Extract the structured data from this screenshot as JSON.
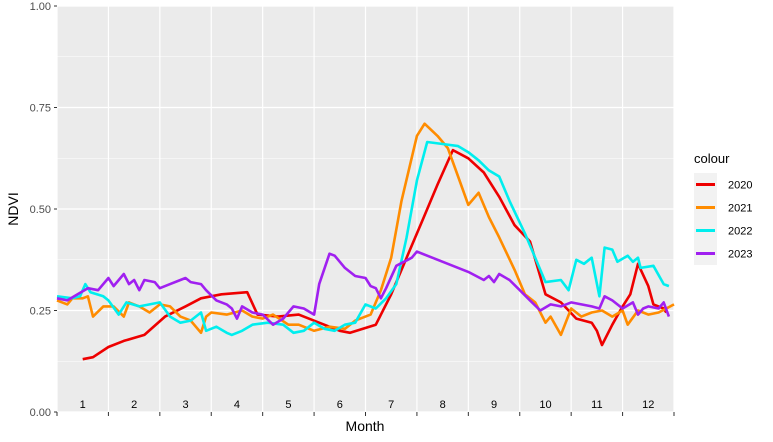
{
  "chart_data": {
    "type": "line",
    "title": "",
    "xlabel": "Month",
    "ylabel": "NDVI",
    "xlim": [
      0.5,
      12.5
    ],
    "ylim": [
      0,
      1
    ],
    "x_ticks": [
      1,
      2,
      3,
      4,
      5,
      6,
      7,
      8,
      9,
      10,
      11,
      12
    ],
    "x_tick_labels": [
      "1",
      "2",
      "3",
      "4",
      "5",
      "6",
      "7",
      "8",
      "9",
      "10",
      "11",
      "12"
    ],
    "y_ticks": [
      0,
      0.25,
      0.5,
      0.75,
      1
    ],
    "y_tick_labels": [
      "0.00",
      "0.25",
      "0.50",
      "0.75",
      "1.00"
    ],
    "grid": true,
    "legend": {
      "title": "colour",
      "position": "right"
    },
    "series": [
      {
        "name": "2020",
        "color": "#ee0000",
        "points": [
          [
            1.0,
            0.13
          ],
          [
            1.2,
            0.135
          ],
          [
            1.5,
            0.16
          ],
          [
            1.8,
            0.175
          ],
          [
            2.2,
            0.19
          ],
          [
            2.6,
            0.235
          ],
          [
            3.0,
            0.26
          ],
          [
            3.3,
            0.28
          ],
          [
            3.7,
            0.29
          ],
          [
            4.2,
            0.295
          ],
          [
            4.4,
            0.24
          ],
          [
            4.8,
            0.235
          ],
          [
            5.2,
            0.24
          ],
          [
            5.6,
            0.22
          ],
          [
            6.0,
            0.2
          ],
          [
            6.2,
            0.195
          ],
          [
            6.7,
            0.215
          ],
          [
            7.0,
            0.29
          ],
          [
            7.3,
            0.38
          ],
          [
            7.6,
            0.47
          ],
          [
            7.9,
            0.56
          ],
          [
            8.2,
            0.645
          ],
          [
            8.5,
            0.625
          ],
          [
            8.8,
            0.59
          ],
          [
            9.1,
            0.53
          ],
          [
            9.4,
            0.46
          ],
          [
            9.7,
            0.42
          ],
          [
            10.0,
            0.29
          ],
          [
            10.3,
            0.27
          ],
          [
            10.6,
            0.23
          ],
          [
            10.9,
            0.22
          ],
          [
            11.0,
            0.2
          ],
          [
            11.1,
            0.165
          ],
          [
            11.3,
            0.215
          ],
          [
            11.5,
            0.26
          ],
          [
            11.65,
            0.29
          ],
          [
            11.8,
            0.365
          ],
          [
            12.0,
            0.31
          ],
          [
            12.1,
            0.265
          ],
          [
            12.3,
            0.255
          ],
          [
            12.35,
            0.245
          ]
        ]
      },
      {
        "name": "2021",
        "color": "#ff8c00",
        "points": [
          [
            0.5,
            0.275
          ],
          [
            0.7,
            0.265
          ],
          [
            0.8,
            0.28
          ],
          [
            1.0,
            0.28
          ],
          [
            1.1,
            0.285
          ],
          [
            1.2,
            0.235
          ],
          [
            1.4,
            0.26
          ],
          [
            1.6,
            0.26
          ],
          [
            1.8,
            0.235
          ],
          [
            1.9,
            0.27
          ],
          [
            2.1,
            0.26
          ],
          [
            2.3,
            0.245
          ],
          [
            2.5,
            0.265
          ],
          [
            2.7,
            0.26
          ],
          [
            2.9,
            0.235
          ],
          [
            3.1,
            0.225
          ],
          [
            3.3,
            0.195
          ],
          [
            3.4,
            0.235
          ],
          [
            3.5,
            0.245
          ],
          [
            3.8,
            0.24
          ],
          [
            4.1,
            0.25
          ],
          [
            4.3,
            0.235
          ],
          [
            4.5,
            0.23
          ],
          [
            4.7,
            0.24
          ],
          [
            5.0,
            0.215
          ],
          [
            5.2,
            0.215
          ],
          [
            5.5,
            0.2
          ],
          [
            5.8,
            0.21
          ],
          [
            6.1,
            0.205
          ],
          [
            6.3,
            0.225
          ],
          [
            6.6,
            0.24
          ],
          [
            6.8,
            0.3
          ],
          [
            7.0,
            0.38
          ],
          [
            7.2,
            0.52
          ],
          [
            7.5,
            0.68
          ],
          [
            7.65,
            0.71
          ],
          [
            7.9,
            0.68
          ],
          [
            8.1,
            0.65
          ],
          [
            8.3,
            0.58
          ],
          [
            8.5,
            0.51
          ],
          [
            8.7,
            0.54
          ],
          [
            8.9,
            0.48
          ],
          [
            9.1,
            0.43
          ],
          [
            9.4,
            0.35
          ],
          [
            9.6,
            0.29
          ],
          [
            9.8,
            0.27
          ],
          [
            10.0,
            0.22
          ],
          [
            10.1,
            0.235
          ],
          [
            10.3,
            0.19
          ],
          [
            10.5,
            0.255
          ],
          [
            10.7,
            0.235
          ],
          [
            10.9,
            0.245
          ],
          [
            11.1,
            0.25
          ],
          [
            11.3,
            0.235
          ],
          [
            11.5,
            0.25
          ],
          [
            11.6,
            0.215
          ],
          [
            11.8,
            0.25
          ],
          [
            12.0,
            0.24
          ],
          [
            12.2,
            0.245
          ],
          [
            12.35,
            0.255
          ],
          [
            12.5,
            0.265
          ]
        ]
      },
      {
        "name": "2022",
        "color": "#00eeee",
        "points": [
          [
            0.5,
            0.285
          ],
          [
            0.8,
            0.28
          ],
          [
            0.95,
            0.285
          ],
          [
            1.05,
            0.315
          ],
          [
            1.15,
            0.295
          ],
          [
            1.4,
            0.285
          ],
          [
            1.5,
            0.275
          ],
          [
            1.7,
            0.24
          ],
          [
            1.85,
            0.27
          ],
          [
            2.1,
            0.26
          ],
          [
            2.3,
            0.265
          ],
          [
            2.5,
            0.27
          ],
          [
            2.7,
            0.235
          ],
          [
            2.9,
            0.22
          ],
          [
            3.1,
            0.225
          ],
          [
            3.3,
            0.245
          ],
          [
            3.4,
            0.2
          ],
          [
            3.6,
            0.21
          ],
          [
            3.8,
            0.195
          ],
          [
            3.9,
            0.19
          ],
          [
            4.1,
            0.2
          ],
          [
            4.3,
            0.215
          ],
          [
            4.6,
            0.22
          ],
          [
            4.9,
            0.215
          ],
          [
            5.1,
            0.195
          ],
          [
            5.3,
            0.2
          ],
          [
            5.5,
            0.22
          ],
          [
            5.7,
            0.205
          ],
          [
            5.9,
            0.2
          ],
          [
            6.1,
            0.215
          ],
          [
            6.3,
            0.22
          ],
          [
            6.5,
            0.265
          ],
          [
            6.7,
            0.255
          ],
          [
            6.9,
            0.28
          ],
          [
            7.1,
            0.315
          ],
          [
            7.3,
            0.43
          ],
          [
            7.5,
            0.57
          ],
          [
            7.7,
            0.665
          ],
          [
            8.0,
            0.66
          ],
          [
            8.3,
            0.655
          ],
          [
            8.5,
            0.64
          ],
          [
            8.7,
            0.62
          ],
          [
            8.9,
            0.595
          ],
          [
            9.1,
            0.58
          ],
          [
            9.3,
            0.52
          ],
          [
            9.6,
            0.44
          ],
          [
            9.8,
            0.38
          ],
          [
            10.0,
            0.32
          ],
          [
            10.3,
            0.325
          ],
          [
            10.45,
            0.3
          ],
          [
            10.6,
            0.375
          ],
          [
            10.75,
            0.365
          ],
          [
            10.9,
            0.38
          ],
          [
            11.05,
            0.285
          ],
          [
            11.15,
            0.405
          ],
          [
            11.3,
            0.4
          ],
          [
            11.4,
            0.37
          ],
          [
            11.6,
            0.385
          ],
          [
            11.7,
            0.37
          ],
          [
            11.8,
            0.38
          ],
          [
            11.85,
            0.355
          ],
          [
            12.1,
            0.36
          ],
          [
            12.3,
            0.315
          ],
          [
            12.4,
            0.31
          ]
        ]
      },
      {
        "name": "2023",
        "color": "#a020f0",
        "points": [
          [
            0.5,
            0.28
          ],
          [
            0.7,
            0.275
          ],
          [
            0.9,
            0.29
          ],
          [
            1.1,
            0.305
          ],
          [
            1.3,
            0.3
          ],
          [
            1.5,
            0.33
          ],
          [
            1.6,
            0.31
          ],
          [
            1.8,
            0.34
          ],
          [
            1.9,
            0.315
          ],
          [
            2.0,
            0.325
          ],
          [
            2.1,
            0.3
          ],
          [
            2.2,
            0.325
          ],
          [
            2.4,
            0.32
          ],
          [
            2.5,
            0.305
          ],
          [
            2.7,
            0.315
          ],
          [
            2.9,
            0.325
          ],
          [
            3.0,
            0.33
          ],
          [
            3.1,
            0.32
          ],
          [
            3.3,
            0.315
          ],
          [
            3.4,
            0.3
          ],
          [
            3.6,
            0.275
          ],
          [
            3.8,
            0.265
          ],
          [
            3.9,
            0.255
          ],
          [
            4.0,
            0.23
          ],
          [
            4.1,
            0.26
          ],
          [
            4.3,
            0.245
          ],
          [
            4.5,
            0.24
          ],
          [
            4.7,
            0.215
          ],
          [
            4.9,
            0.23
          ],
          [
            5.1,
            0.26
          ],
          [
            5.3,
            0.255
          ],
          [
            5.5,
            0.24
          ],
          [
            5.6,
            0.315
          ],
          [
            5.8,
            0.39
          ],
          [
            5.9,
            0.385
          ],
          [
            6.1,
            0.355
          ],
          [
            6.3,
            0.335
          ],
          [
            6.5,
            0.33
          ],
          [
            6.6,
            0.31
          ],
          [
            6.7,
            0.305
          ],
          [
            6.8,
            0.28
          ],
          [
            6.9,
            0.305
          ],
          [
            7.1,
            0.36
          ],
          [
            7.4,
            0.38
          ],
          [
            7.5,
            0.395
          ],
          [
            7.8,
            0.38
          ],
          [
            8.1,
            0.365
          ],
          [
            8.5,
            0.345
          ],
          [
            8.8,
            0.325
          ],
          [
            8.9,
            0.335
          ],
          [
            9.0,
            0.32
          ],
          [
            9.1,
            0.34
          ],
          [
            9.3,
            0.325
          ],
          [
            9.5,
            0.3
          ],
          [
            9.7,
            0.275
          ],
          [
            9.9,
            0.25
          ],
          [
            10.1,
            0.265
          ],
          [
            10.3,
            0.26
          ],
          [
            10.5,
            0.27
          ],
          [
            10.7,
            0.265
          ],
          [
            10.9,
            0.26
          ],
          [
            11.05,
            0.255
          ],
          [
            11.15,
            0.285
          ],
          [
            11.3,
            0.275
          ],
          [
            11.5,
            0.255
          ],
          [
            11.7,
            0.27
          ],
          [
            11.8,
            0.24
          ],
          [
            11.9,
            0.255
          ],
          [
            12.0,
            0.26
          ],
          [
            12.2,
            0.255
          ],
          [
            12.3,
            0.27
          ],
          [
            12.4,
            0.235
          ]
        ]
      }
    ]
  }
}
